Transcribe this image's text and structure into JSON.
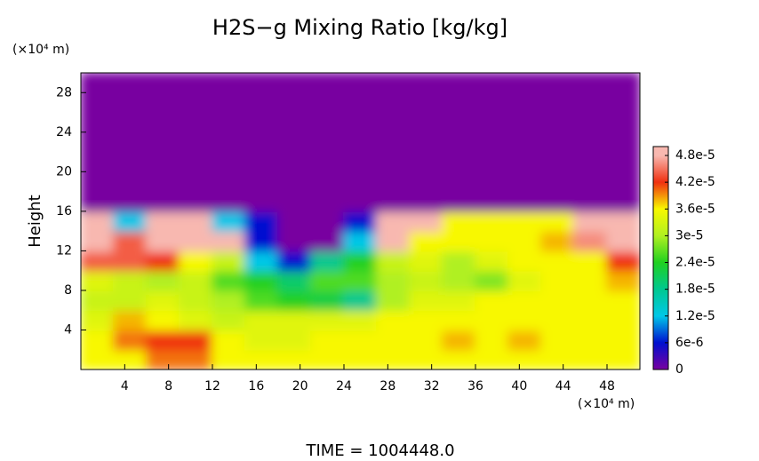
{
  "chart_data": {
    "type": "heatmap",
    "title": "H2S−g Mixing Ratio [kg/kg]",
    "y_label": "Height",
    "x_unit": "(×10⁴ m)",
    "y_unit": "(×10⁴ m)",
    "footer": "TIME = 1004448.0",
    "xlim": [
      0,
      51
    ],
    "ylim": [
      0,
      30
    ],
    "xticks": [
      4,
      8,
      12,
      16,
      20,
      24,
      28,
      32,
      36,
      40,
      44,
      48
    ],
    "yticks": [
      4,
      8,
      12,
      16,
      20,
      24,
      28
    ],
    "x": [
      1.5,
      4.5,
      7.5,
      10.5,
      13.5,
      16.5,
      19.5,
      22.5,
      25.5,
      28.5,
      31.5,
      34.5,
      37.5,
      40.5,
      43.5,
      46.5,
      49.5
    ],
    "y": [
      1,
      3,
      5,
      7,
      9,
      11,
      13,
      15,
      17,
      19,
      21,
      23,
      25,
      27,
      29
    ],
    "z": [
      [
        3.6e-05,
        3.6e-05,
        4e-05,
        4e-05,
        3.6e-05,
        3.6e-05,
        3.6e-05,
        3.6e-05,
        3.6e-05,
        3.6e-05,
        3.6e-05,
        3.6e-05,
        3.6e-05,
        3.6e-05,
        3.6e-05,
        3.6e-05,
        3.6e-05
      ],
      [
        3.6e-05,
        4e-05,
        4.2e-05,
        4.2e-05,
        3.6e-05,
        3.4e-05,
        3.4e-05,
        3.6e-05,
        3.6e-05,
        3.6e-05,
        3.6e-05,
        3.8e-05,
        3.6e-05,
        3.8e-05,
        3.6e-05,
        3.6e-05,
        3.6e-05
      ],
      [
        3.4e-05,
        3.8e-05,
        3.6e-05,
        3.4e-05,
        3.2e-05,
        3.4e-05,
        3.4e-05,
        3.4e-05,
        3.4e-05,
        3.6e-05,
        3.6e-05,
        3.6e-05,
        3.6e-05,
        3.6e-05,
        3.6e-05,
        3.6e-05,
        3.6e-05
      ],
      [
        3.2e-05,
        3.2e-05,
        3.4e-05,
        3.2e-05,
        3e-05,
        2.6e-05,
        2.4e-05,
        2.2e-05,
        1.8e-05,
        3e-05,
        3.4e-05,
        3.4e-05,
        3.6e-05,
        3.6e-05,
        3.6e-05,
        3.6e-05,
        3.6e-05
      ],
      [
        3.4e-05,
        3.2e-05,
        3e-05,
        3.2e-05,
        2.6e-05,
        2.4e-05,
        2e-05,
        2.6e-05,
        2.6e-05,
        3e-05,
        3.2e-05,
        3e-05,
        2.8e-05,
        3.4e-05,
        3.6e-05,
        3.6e-05,
        3.8e-05
      ],
      [
        4.4e-05,
        4.4e-05,
        4.2e-05,
        3.6e-05,
        3.2e-05,
        1.2e-05,
        6e-06,
        1.8e-05,
        2.4e-05,
        3.2e-05,
        3.4e-05,
        3e-05,
        3.4e-05,
        3.6e-05,
        3.6e-05,
        3.6e-05,
        4.2e-05
      ],
      [
        4.8e-05,
        4.4e-05,
        4.8e-05,
        4.8e-05,
        4.8e-05,
        6e-06,
        0,
        0,
        1.2e-05,
        4.8e-05,
        3.6e-05,
        3.6e-05,
        3.6e-05,
        3.6e-05,
        3.8e-05,
        4.6e-05,
        4.8e-05
      ],
      [
        4.8e-05,
        1.2e-05,
        4.8e-05,
        4.8e-05,
        1.2e-05,
        6e-06,
        0,
        0,
        6e-06,
        4.8e-05,
        4.8e-05,
        3.6e-05,
        3.6e-05,
        3.6e-05,
        3.6e-05,
        4.8e-05,
        4.8e-05
      ],
      [
        0,
        0,
        0,
        0,
        0,
        0,
        0,
        0,
        0,
        0,
        0,
        0,
        0,
        0,
        0,
        0,
        0
      ],
      [
        0,
        0,
        0,
        0,
        0,
        0,
        0,
        0,
        0,
        0,
        0,
        0,
        0,
        0,
        0,
        0,
        0
      ],
      [
        0,
        0,
        0,
        0,
        0,
        0,
        0,
        0,
        0,
        0,
        0,
        0,
        0,
        0,
        0,
        0,
        0
      ],
      [
        0,
        0,
        0,
        0,
        0,
        0,
        0,
        0,
        0,
        0,
        0,
        0,
        0,
        0,
        0,
        0,
        0
      ],
      [
        0,
        0,
        0,
        0,
        0,
        0,
        0,
        0,
        0,
        0,
        0,
        0,
        0,
        0,
        0,
        0,
        0
      ],
      [
        0,
        0,
        0,
        0,
        0,
        0,
        0,
        0,
        0,
        0,
        0,
        0,
        0,
        0,
        0,
        0,
        0
      ],
      [
        0,
        0,
        0,
        0,
        0,
        0,
        0,
        0,
        0,
        0,
        0,
        0,
        0,
        0,
        0,
        0,
        0
      ]
    ],
    "clim": [
      0,
      5e-05
    ],
    "colorscale": [
      [
        0,
        "#7800a0"
      ],
      [
        6e-06,
        "#0010d0"
      ],
      [
        1.2e-05,
        "#00c8e8"
      ],
      [
        1.8e-05,
        "#00c890"
      ],
      [
        2.4e-05,
        "#20d020"
      ],
      [
        3e-05,
        "#b0f020"
      ],
      [
        3.6e-05,
        "#f8f800"
      ],
      [
        4.2e-05,
        "#f03010"
      ],
      [
        4.8e-05,
        "#f8b8b0"
      ]
    ],
    "cticks": [
      0,
      {
        "value": 6e-06,
        "label": "6e-6"
      },
      {
        "value": 1.2e-05,
        "label": "1.2e-5"
      },
      {
        "value": 1.8e-05,
        "label": "1.8e-5"
      },
      {
        "value": 2.4e-05,
        "label": "2.4e-5"
      },
      {
        "value": 3e-05,
        "label": "3e-5"
      },
      {
        "value": 3.6e-05,
        "label": "3.6e-5"
      },
      {
        "value": 4.2e-05,
        "label": "4.2e-5"
      },
      {
        "value": 4.8e-05,
        "label": "4.8e-5"
      }
    ]
  }
}
